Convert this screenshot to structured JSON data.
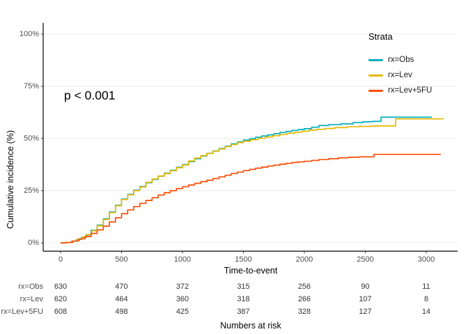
{
  "chart_data": {
    "type": "line",
    "subtype": "step-cumulative-incidence",
    "title": "",
    "xlabel": "Time-to-event",
    "ylabel": "Cumulative incidence (%)",
    "annotation": "p < 0.001",
    "legend_title": "Strata",
    "legend_position": "inside-top-right",
    "grid": true,
    "xlim": [
      0,
      3300
    ],
    "ylim": [
      0,
      100
    ],
    "xticks": [
      "0",
      "500",
      "1000",
      "1500",
      "2000",
      "2500",
      "3000"
    ],
    "ytick_pcts": [
      0,
      25,
      50,
      75,
      100
    ],
    "ytick_labels": [
      "0%",
      "25%",
      "50%",
      "75%",
      "100%"
    ],
    "colors": {
      "grid": "#ebebeb",
      "axis": "#000000",
      "tick_text": "#4d4d4d"
    },
    "series": [
      {
        "name": "rx=Obs",
        "color": "#00AFBB",
        "points": [
          [
            0,
            0
          ],
          [
            40,
            0.2
          ],
          [
            90,
            0.8
          ],
          [
            130,
            1.6
          ],
          [
            170,
            2.6
          ],
          [
            210,
            3.8
          ],
          [
            250,
            6
          ],
          [
            300,
            8.5
          ],
          [
            350,
            11.5
          ],
          [
            400,
            14.8
          ],
          [
            450,
            18
          ],
          [
            500,
            21
          ],
          [
            550,
            23.2
          ],
          [
            600,
            25.2
          ],
          [
            650,
            27
          ],
          [
            700,
            28.8
          ],
          [
            750,
            30.4
          ],
          [
            800,
            31.9
          ],
          [
            850,
            33.4
          ],
          [
            900,
            34.8
          ],
          [
            950,
            36.2
          ],
          [
            1000,
            37.5
          ],
          [
            1050,
            38.9
          ],
          [
            1100,
            40.3
          ],
          [
            1150,
            41.6
          ],
          [
            1200,
            42.9
          ],
          [
            1250,
            44
          ],
          [
            1300,
            45.2
          ],
          [
            1350,
            46.3
          ],
          [
            1400,
            47.4
          ],
          [
            1450,
            48.3
          ],
          [
            1500,
            49.2
          ],
          [
            1550,
            49.9
          ],
          [
            1600,
            50.6
          ],
          [
            1650,
            51.2
          ],
          [
            1700,
            51.7
          ],
          [
            1750,
            52.3
          ],
          [
            1800,
            52.9
          ],
          [
            1850,
            53.4
          ],
          [
            1900,
            53.9
          ],
          [
            1950,
            54.3
          ],
          [
            2000,
            54.7
          ],
          [
            2060,
            55.4
          ],
          [
            2120,
            56.2
          ],
          [
            2200,
            56.6
          ],
          [
            2300,
            57
          ],
          [
            2400,
            57.6
          ],
          [
            2480,
            58
          ],
          [
            2560,
            58.2
          ],
          [
            2629,
            60.2
          ],
          [
            3046,
            60.2
          ]
        ]
      },
      {
        "name": "rx=Lev",
        "color": "#E7B800",
        "points": [
          [
            0,
            0
          ],
          [
            45,
            0.2
          ],
          [
            95,
            0.9
          ],
          [
            135,
            1.8
          ],
          [
            175,
            2.8
          ],
          [
            215,
            4
          ],
          [
            255,
            5.8
          ],
          [
            300,
            8.2
          ],
          [
            350,
            11.2
          ],
          [
            400,
            14.5
          ],
          [
            450,
            17.8
          ],
          [
            500,
            20.8
          ],
          [
            550,
            23
          ],
          [
            600,
            25
          ],
          [
            650,
            26.8
          ],
          [
            700,
            29
          ],
          [
            750,
            30.6
          ],
          [
            800,
            32
          ],
          [
            850,
            33.2
          ],
          [
            900,
            34.6
          ],
          [
            950,
            36
          ],
          [
            1000,
            37.3
          ],
          [
            1050,
            39.2
          ],
          [
            1100,
            40.6
          ],
          [
            1150,
            41.8
          ],
          [
            1200,
            42.8
          ],
          [
            1250,
            43.9
          ],
          [
            1300,
            45
          ],
          [
            1350,
            46.1
          ],
          [
            1400,
            47.1
          ],
          [
            1450,
            48
          ],
          [
            1500,
            48.7
          ],
          [
            1560,
            49.4
          ],
          [
            1620,
            50.1
          ],
          [
            1680,
            50.7
          ],
          [
            1740,
            51.3
          ],
          [
            1800,
            51.9
          ],
          [
            1860,
            52.5
          ],
          [
            1920,
            53
          ],
          [
            1980,
            53.5
          ],
          [
            2040,
            54
          ],
          [
            2100,
            54.4
          ],
          [
            2170,
            54.8
          ],
          [
            2250,
            55.2
          ],
          [
            2350,
            55.6
          ],
          [
            2450,
            55.8
          ],
          [
            2550,
            56
          ],
          [
            2749,
            59.4
          ],
          [
            3143,
            59.4
          ]
        ]
      },
      {
        "name": "rx=Lev+5FU",
        "color": "#FC4E07",
        "points": [
          [
            0,
            0
          ],
          [
            50,
            0.2
          ],
          [
            100,
            0.9
          ],
          [
            150,
            1.9
          ],
          [
            200,
            3
          ],
          [
            250,
            4.5
          ],
          [
            300,
            6.2
          ],
          [
            350,
            8
          ],
          [
            400,
            10
          ],
          [
            450,
            12
          ],
          [
            500,
            14
          ],
          [
            550,
            15.8
          ],
          [
            600,
            17.4
          ],
          [
            650,
            18.9
          ],
          [
            700,
            20.3
          ],
          [
            750,
            21.6
          ],
          [
            800,
            22.9
          ],
          [
            850,
            24
          ],
          [
            900,
            25
          ],
          [
            950,
            26
          ],
          [
            1000,
            26.9
          ],
          [
            1050,
            27.7
          ],
          [
            1100,
            28.5
          ],
          [
            1150,
            29.3
          ],
          [
            1200,
            30
          ],
          [
            1250,
            30.8
          ],
          [
            1300,
            31.6
          ],
          [
            1350,
            32.4
          ],
          [
            1400,
            33.2
          ],
          [
            1450,
            33.9
          ],
          [
            1500,
            34.6
          ],
          [
            1550,
            35.2
          ],
          [
            1600,
            35.8
          ],
          [
            1650,
            36.3
          ],
          [
            1700,
            36.8
          ],
          [
            1750,
            37.2
          ],
          [
            1800,
            37.7
          ],
          [
            1850,
            38.1
          ],
          [
            1900,
            38.5
          ],
          [
            1950,
            38.8
          ],
          [
            2000,
            39.1
          ],
          [
            2060,
            39.5
          ],
          [
            2120,
            39.9
          ],
          [
            2200,
            40.3
          ],
          [
            2280,
            40.7
          ],
          [
            2360,
            41
          ],
          [
            2450,
            41.2
          ],
          [
            2571,
            42.4
          ],
          [
            3120,
            42.4
          ]
        ]
      }
    ]
  },
  "risk_table": {
    "caption": "Numbers at risk",
    "times": [
      0,
      500,
      1000,
      1500,
      2000,
      2500,
      3000
    ],
    "rows": [
      {
        "label": "rx=Obs",
        "values": [
          "630",
          "470",
          "372",
          "315",
          "256",
          "90",
          "11"
        ]
      },
      {
        "label": "rx=Lev",
        "values": [
          "620",
          "464",
          "360",
          "318",
          "266",
          "107",
          "8"
        ]
      },
      {
        "label": "rx=Lev+5FU",
        "values": [
          "608",
          "498",
          "425",
          "387",
          "328",
          "127",
          "14"
        ]
      }
    ]
  }
}
